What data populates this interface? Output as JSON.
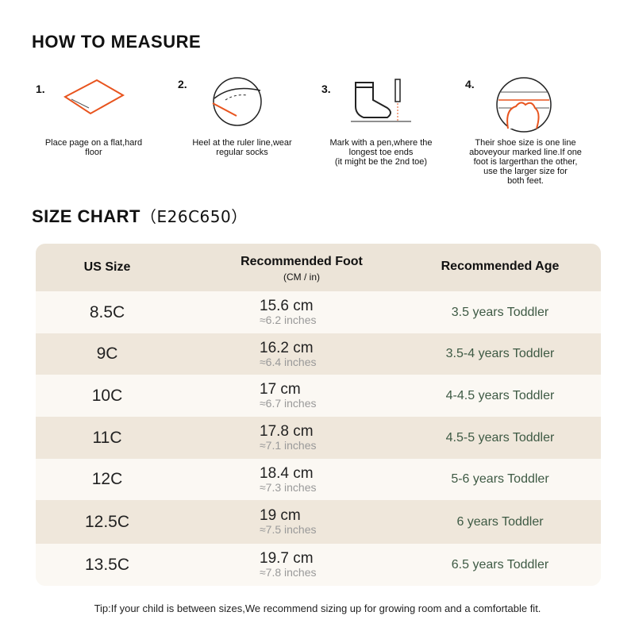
{
  "measure": {
    "title": "HOW TO MEASURE",
    "steps": [
      {
        "number": "1.",
        "lines": [
          "Place page on a flat,hard",
          "floor"
        ]
      },
      {
        "number": "2.",
        "lines": [
          "Heel at the ruler line,wear",
          "regular socks"
        ]
      },
      {
        "number": "3.",
        "lines": [
          "Mark with a pen,where the",
          "longest toe ends",
          "(it might be the 2nd toe)"
        ]
      },
      {
        "number": "4.",
        "lines": [
          "Their shoe size is one line",
          "aboveyour marked line.If one",
          "foot is largerthan the other,",
          "use the larger size for",
          "both feet."
        ]
      }
    ]
  },
  "size_chart": {
    "title": "SIZE CHART",
    "code": "（E26C650）",
    "headers": {
      "size": "US Size",
      "foot": "Recommended Foot",
      "foot_unit": "(CM / in)",
      "age": "Recommended Age"
    },
    "rows": [
      {
        "size": "8.5C",
        "cm": "15.6 cm",
        "inches": "≈6.2 inches",
        "age": "3.5 years Toddler"
      },
      {
        "size": "9C",
        "cm": "16.2 cm",
        "inches": "≈6.4 inches",
        "age": "3.5-4 years Toddler"
      },
      {
        "size": "10C",
        "cm": "17 cm",
        "inches": "≈6.7 inches",
        "age": "4-4.5 years Toddler"
      },
      {
        "size": "11C",
        "cm": "17.8 cm",
        "inches": "≈7.1 inches",
        "age": "4.5-5 years Toddler"
      },
      {
        "size": "12C",
        "cm": "18.4 cm",
        "inches": "≈7.3 inches",
        "age": "5-6 years Toddler"
      },
      {
        "size": "12.5C",
        "cm": "19 cm",
        "inches": "≈7.5 inches",
        "age": "6 years Toddler"
      },
      {
        "size": "13.5C",
        "cm": "19.7 cm",
        "inches": "≈7.8 inches",
        "age": "6.5 years Toddler"
      }
    ]
  },
  "tip": "Tip:If your child is between sizes,We recommend sizing up for growing room and a comfortable fit."
}
